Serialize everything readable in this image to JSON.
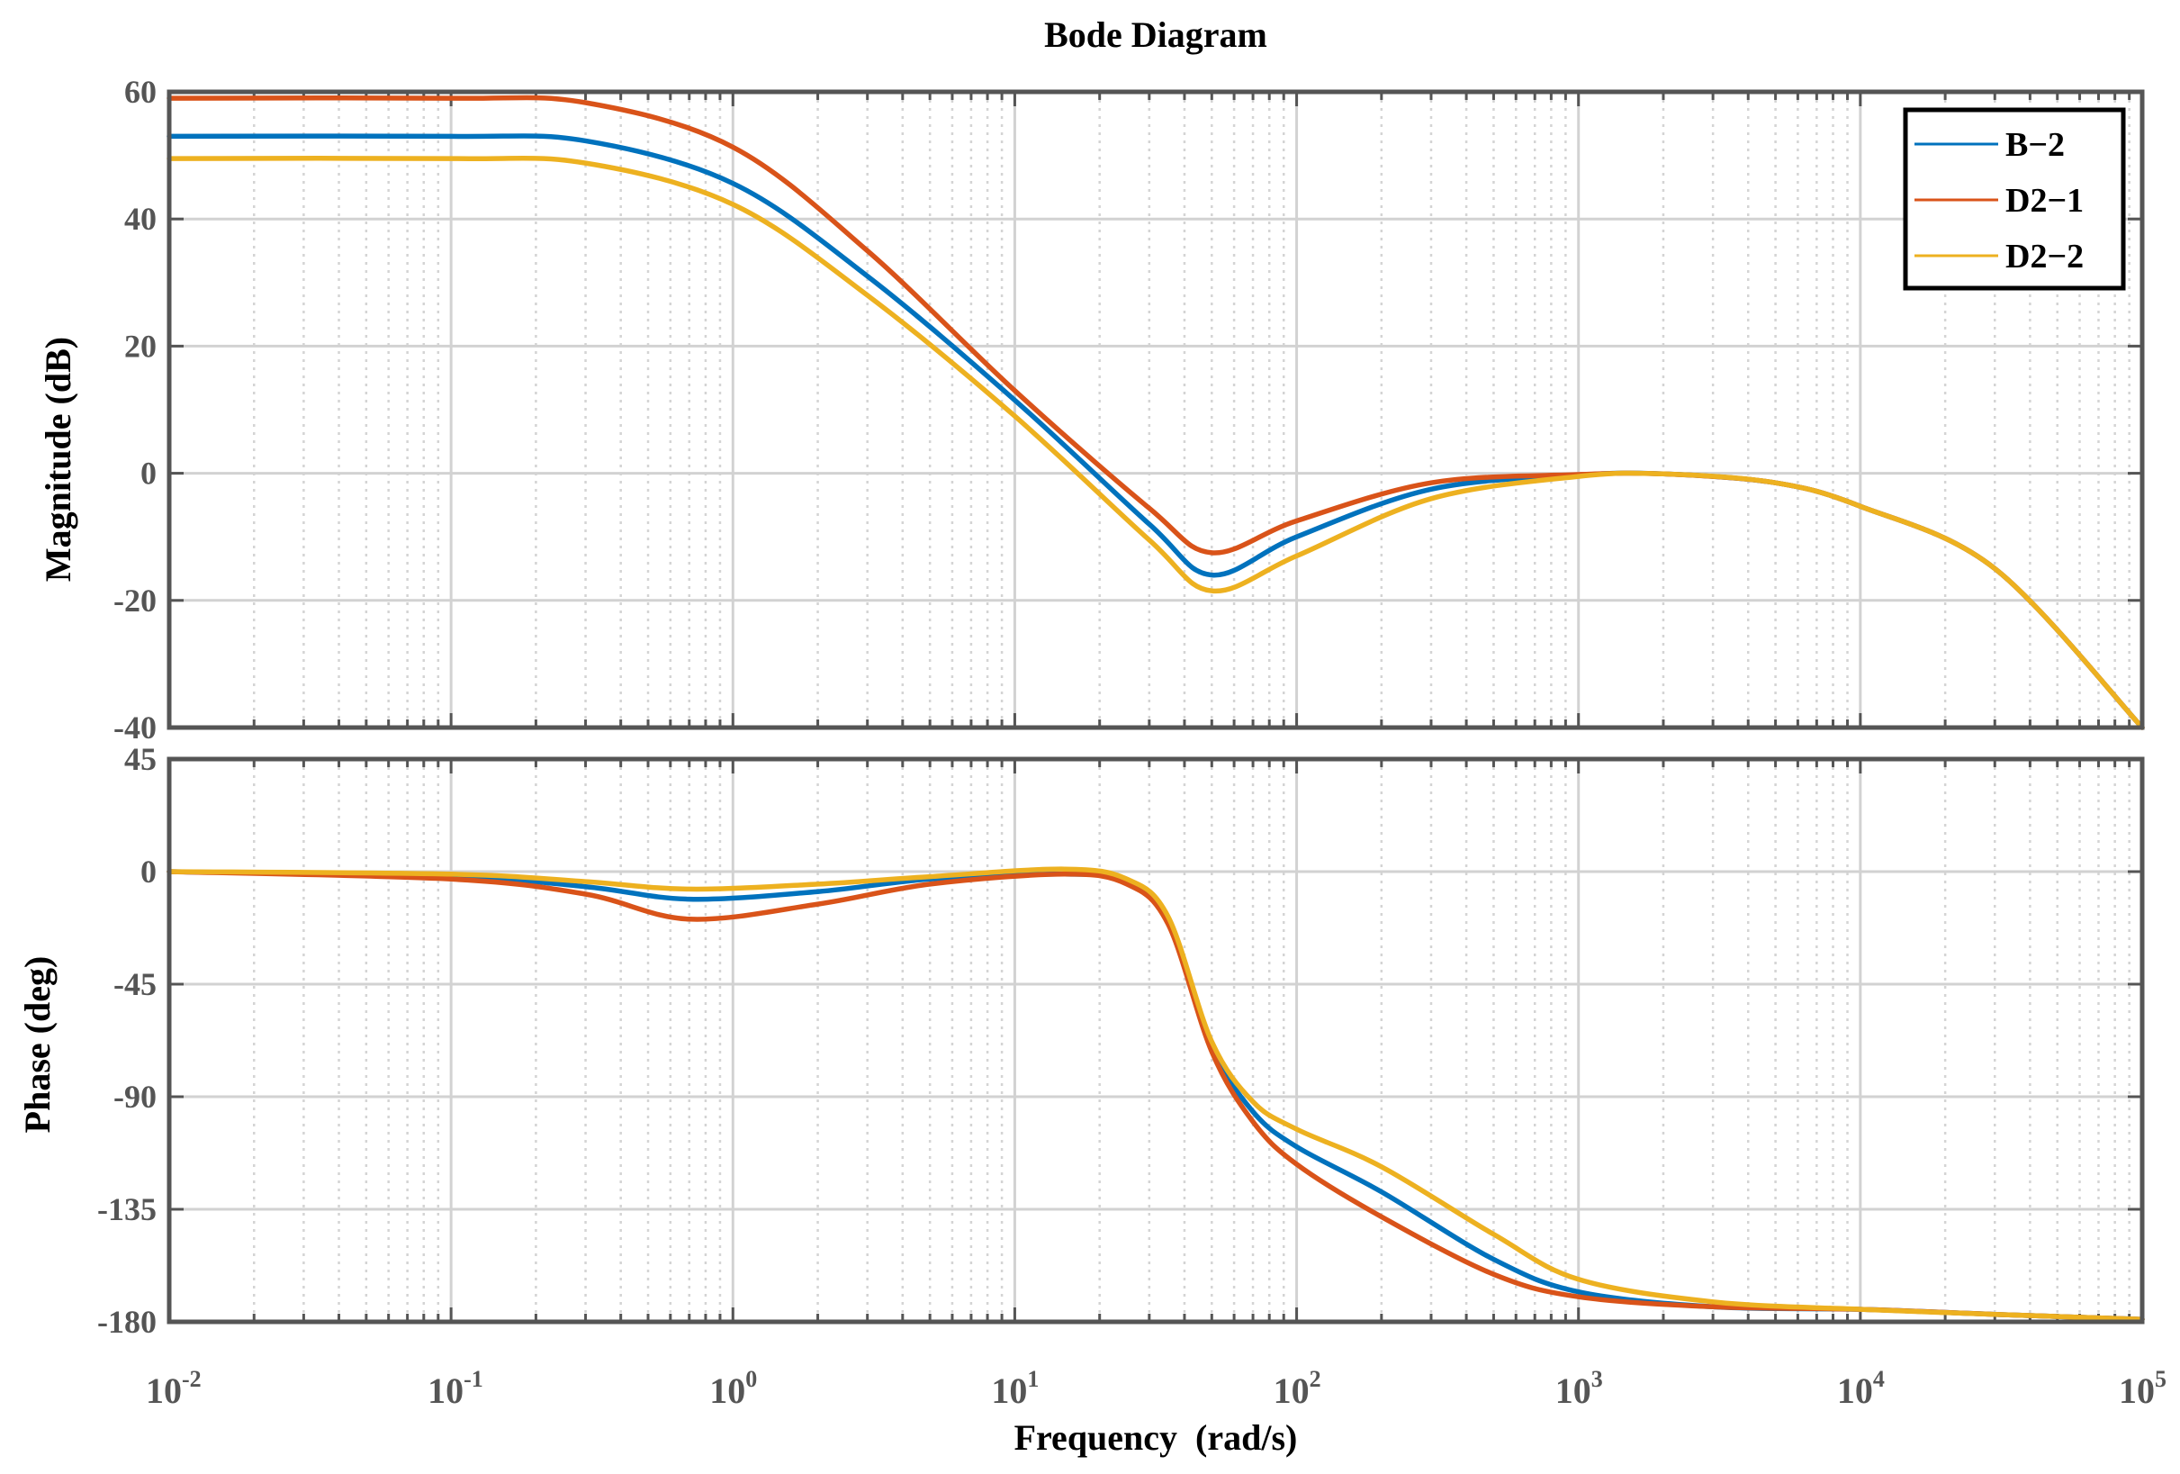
{
  "chart_data": {
    "type": "line",
    "title": "Bode Diagram",
    "xlabel": "Frequency  (rad/s)",
    "xscale": "log",
    "xlim": [
      0.01,
      100000
    ],
    "x_ticks": [
      {
        "base": "10",
        "exp": "-2"
      },
      {
        "base": "10",
        "exp": "-1"
      },
      {
        "base": "10",
        "exp": "0"
      },
      {
        "base": "10",
        "exp": "1"
      },
      {
        "base": "10",
        "exp": "2"
      },
      {
        "base": "10",
        "exp": "3"
      },
      {
        "base": "10",
        "exp": "4"
      },
      {
        "base": "10",
        "exp": "5"
      }
    ],
    "grid": true,
    "legend": {
      "position": "top-right",
      "panel": "magnitude",
      "entries": [
        "B−2",
        "D2−1",
        "D2−2"
      ]
    },
    "series_colors": {
      "B-2": "#0072bd",
      "D2-1": "#d95319",
      "D2-2": "#edb120"
    },
    "magnitude": {
      "ylabel": "Magnitude (dB)",
      "ylim": [
        -40,
        60
      ],
      "yticks": [
        "60",
        "40",
        "20",
        "0",
        "-20",
        "-40"
      ],
      "ytick_values": [
        60,
        40,
        20,
        0,
        -20,
        -40
      ],
      "series": [
        {
          "name": "B-2",
          "x": [
            0.01,
            0.1,
            0.3,
            1,
            3,
            10,
            30,
            50,
            100,
            300,
            1000,
            2000,
            5000,
            10000,
            30000,
            100000
          ],
          "values": [
            53,
            53,
            52.3,
            45.6,
            31,
            11.5,
            -8,
            -16,
            -10,
            -2.5,
            -0.3,
            -0.1,
            -1.5,
            -5.2,
            -15,
            -40
          ]
        },
        {
          "name": "D2-1",
          "x": [
            0.01,
            0.1,
            0.3,
            1,
            3,
            10,
            30,
            50,
            100,
            300,
            1000,
            2000,
            5000,
            10000,
            30000,
            100000
          ],
          "values": [
            59,
            59,
            58.3,
            51.3,
            35,
            13,
            -5.5,
            -12.5,
            -7.5,
            -1.5,
            -0.2,
            -0.1,
            -1.5,
            -5.2,
            -15,
            -40
          ]
        },
        {
          "name": "D2-2",
          "x": [
            0.01,
            0.1,
            0.3,
            1,
            3,
            10,
            30,
            50,
            100,
            300,
            1000,
            2000,
            5000,
            10000,
            30000,
            100000
          ],
          "values": [
            49.5,
            49.5,
            48.8,
            42.3,
            28,
            9,
            -10.5,
            -18.5,
            -13,
            -4,
            -0.5,
            -0.1,
            -1.5,
            -5.2,
            -15,
            -40
          ]
        }
      ]
    },
    "phase": {
      "ylabel": "Phase (deg)",
      "ylim": [
        -180,
        45
      ],
      "yticks": [
        "45",
        "0",
        "-45",
        "-90",
        "-135",
        "-180"
      ],
      "ytick_values": [
        45,
        0,
        -45,
        -90,
        -135,
        -180
      ],
      "series": [
        {
          "name": "B-2",
          "x": [
            0.01,
            0.1,
            0.3,
            0.7,
            2,
            5,
            15,
            25,
            35,
            50,
            70,
            100,
            200,
            500,
            1000,
            3000,
            10000,
            30000,
            100000
          ],
          "values": [
            0,
            -2,
            -6,
            -11,
            -8,
            -3,
            -1,
            -4,
            -20,
            -70,
            -96,
            -110,
            -128,
            -155,
            -168,
            -174,
            -175,
            -177,
            -179
          ]
        },
        {
          "name": "D2-1",
          "x": [
            0.01,
            0.1,
            0.3,
            0.7,
            2,
            5,
            15,
            25,
            35,
            50,
            70,
            100,
            200,
            500,
            1000,
            3000,
            10000,
            30000,
            100000
          ],
          "values": [
            0,
            -3,
            -9,
            -19,
            -13,
            -5,
            -1,
            -5,
            -21,
            -72,
            -100,
            -117,
            -138,
            -161,
            -170,
            -174,
            -175,
            -177,
            -179
          ]
        },
        {
          "name": "D2-2",
          "x": [
            0.01,
            0.1,
            0.3,
            0.7,
            2,
            5,
            15,
            25,
            35,
            50,
            70,
            100,
            200,
            500,
            1000,
            3000,
            10000,
            30000,
            100000
          ],
          "values": [
            0,
            -1,
            -4,
            -7,
            -5,
            -2,
            1,
            -3,
            -18,
            -68,
            -92,
            -103,
            -118,
            -145,
            -163,
            -172,
            -175,
            -177,
            -179
          ]
        }
      ]
    }
  }
}
